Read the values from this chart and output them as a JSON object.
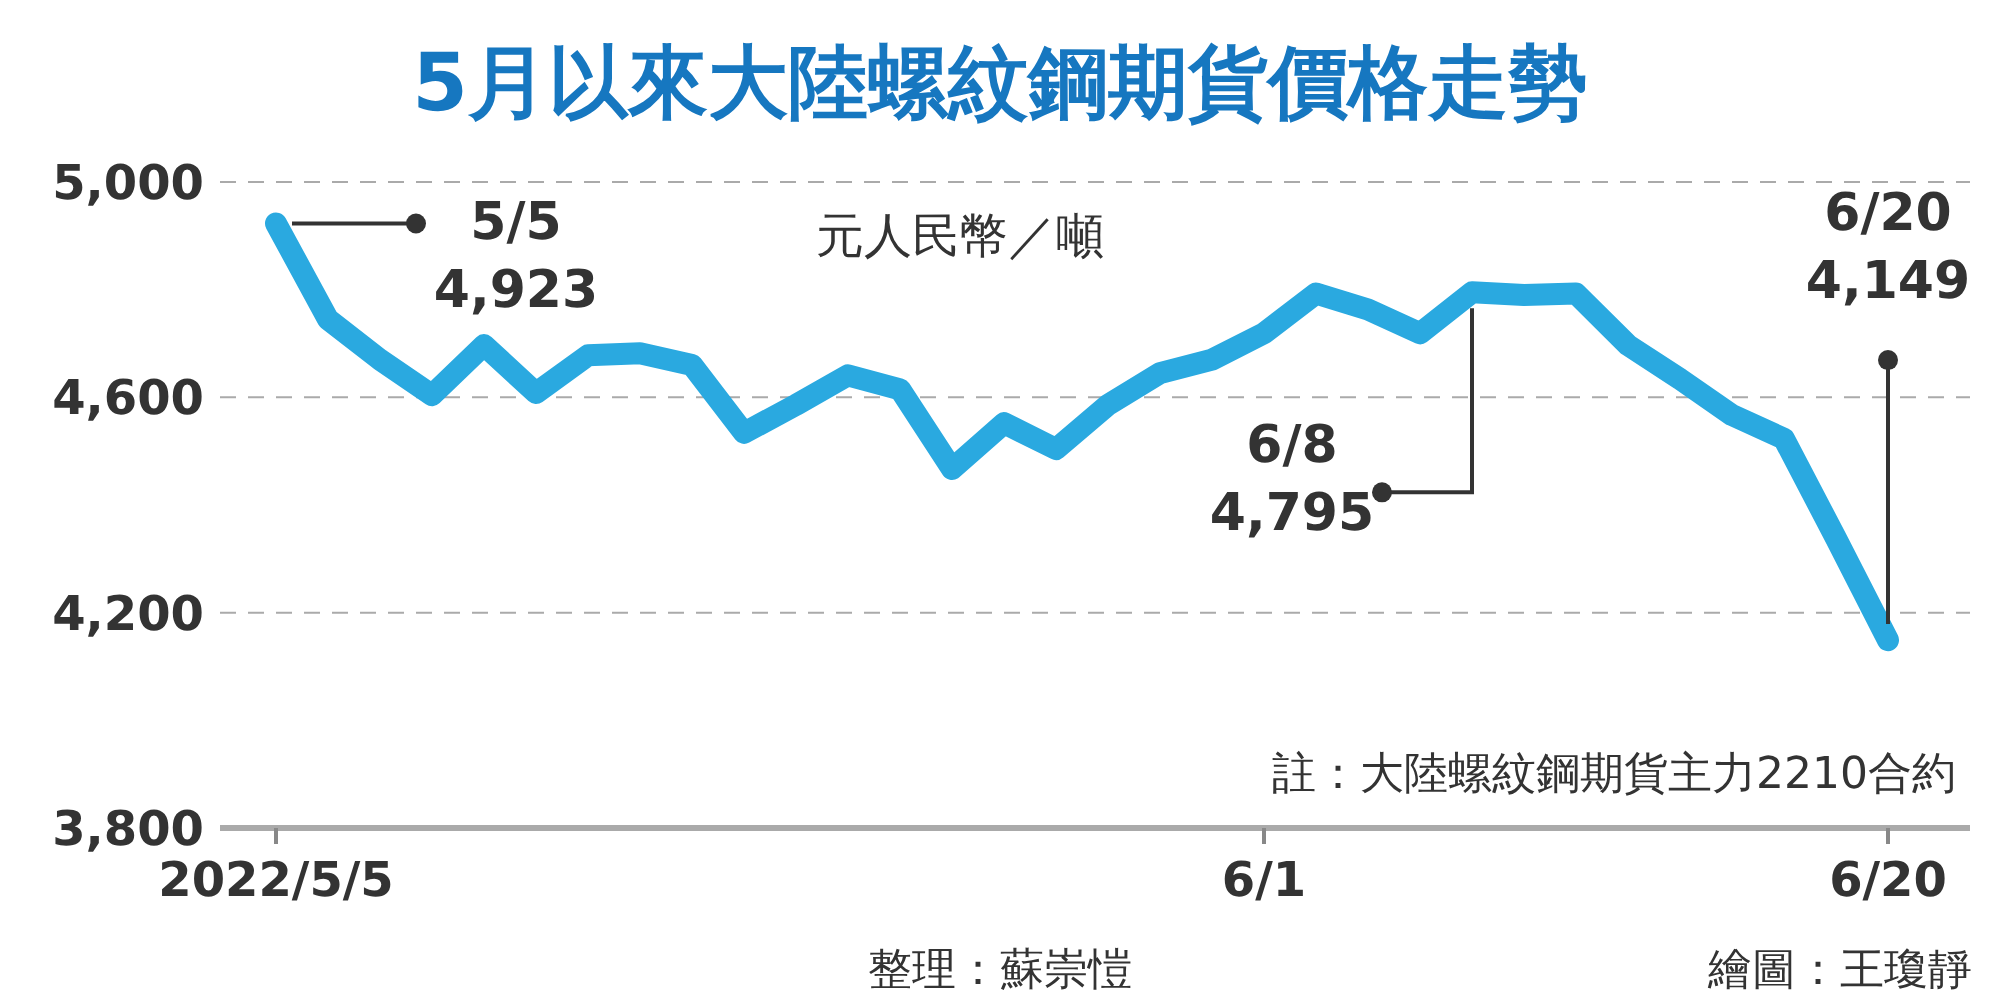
{
  "chart_data": {
    "type": "line",
    "title": "5月以來大陸螺紋鋼期貨價格走勢",
    "ylabel": "元人民幣／噸",
    "categories": [
      "2022/5/5",
      null,
      null,
      null,
      null,
      null,
      null,
      null,
      null,
      null,
      null,
      null,
      null,
      null,
      null,
      null,
      null,
      null,
      null,
      "6/1",
      null,
      null,
      null,
      null,
      null,
      null,
      null,
      null,
      null,
      null,
      null,
      "6/20"
    ],
    "series": [
      {
        "color": "#2aa9e0",
        "values": [
          4923,
          4745,
          4670,
          4604,
          4697,
          4608,
          4678,
          4682,
          4660,
          4534,
          4586,
          4641,
          4615,
          4467,
          4552,
          4504,
          4586,
          4645,
          4670,
          4719,
          4793,
          4763,
          4719,
          4795,
          4790,
          4793,
          4697,
          4634,
          4567,
          4523,
          4338,
          4149
        ],
        "value_labels": [
          "5/5\n4,923",
          null,
          null,
          null,
          null,
          null,
          null,
          null,
          null,
          null,
          null,
          null,
          null,
          null,
          null,
          null,
          null,
          null,
          null,
          null,
          null,
          null,
          null,
          "6/8\n4,795",
          null,
          null,
          null,
          null,
          null,
          null,
          null,
          "6/20\n4,149"
        ]
      }
    ],
    "ylim": [
      3800,
      5000
    ],
    "yticks": [
      {
        "value": 3800,
        "label": "3,800"
      },
      {
        "value": 4200,
        "label": "4,200"
      },
      {
        "value": 4600,
        "label": "4,600"
      },
      {
        "value": 5000,
        "label": "5,000"
      }
    ],
    "grid": "y",
    "marker": "none",
    "line_style": "solid",
    "annotations": [
      "註：大陸螺紋鋼期貨主力2210合約",
      "整理：蘇崇愷",
      "繪圖：王瓊靜"
    ]
  }
}
